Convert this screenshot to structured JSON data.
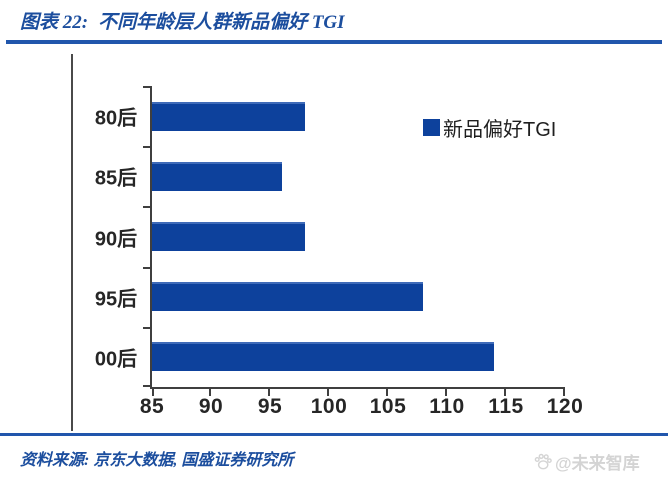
{
  "header": {
    "figure_label": "图表 22:",
    "title": "不同年龄层人群新品偏好 TGI"
  },
  "chart_data": {
    "type": "bar",
    "orientation": "horizontal",
    "title": "不同年龄层人群新品偏好 TGI",
    "categories": [
      "80后",
      "85后",
      "90后",
      "95后",
      "00后"
    ],
    "values": [
      98,
      96,
      98,
      108,
      114
    ],
    "series_name": "新品偏好TGI",
    "legend_label": "新品偏好TGI",
    "legend_position": "right-top",
    "xlim": [
      85,
      120
    ],
    "x_ticks": [
      85,
      90,
      95,
      100,
      105,
      110,
      115,
      120
    ],
    "grid": false,
    "bar_color": "#0d419c"
  },
  "footer": {
    "source": "资料来源: 京东大数据, 国盛证券研究所",
    "watermark": "@未来智库"
  },
  "colors": {
    "bar_blue": "#0d419c",
    "rule_blue": "#2156ac",
    "title_blue": "#1c4e9e",
    "axis_dark": "#3f3f3f",
    "watermark_gray": "#d4d4d4"
  }
}
